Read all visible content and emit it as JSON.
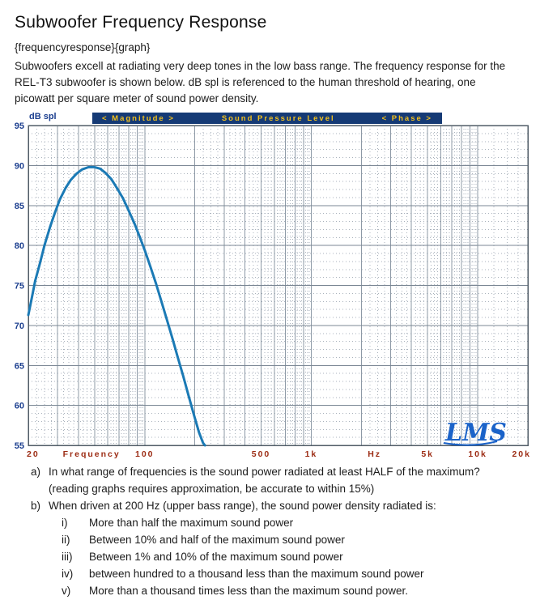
{
  "page": {
    "title": "Subwoofer Frequency Response",
    "tag_line": "{frequencyresponse}{graph}",
    "intro": "Subwoofers excell at radiating very deep tones in the low bass range. The frequency response for the REL-T3 subwoofer is shown below. dB spl is referenced to the human threshold of hearing, one picowatt per square meter of sound power density."
  },
  "graph": {
    "y_axis_title": "dB spl",
    "header": {
      "magnitude_toggle": "< Magnitude >",
      "title": "Sound Pressure Level",
      "phase_toggle": "< Phase >"
    },
    "logo": "LMS",
    "colors": {
      "header_bg": "#153a75",
      "header_text": "#f2c01e",
      "y_label": "#1c3f8f",
      "x_label": "#9c2c14",
      "grid_major": "#7b8794",
      "grid_solid": "#8d99a6",
      "grid_minor": "#a9b2bc",
      "border": "#4f5b66",
      "curve": "#1b7ab5",
      "logo": "#1b63c9"
    }
  },
  "chart_data": {
    "type": "line",
    "title": "Sound Pressure Level",
    "x_scale": "log",
    "xlabel": "Frequency (Hz)",
    "ylabel": "dB spl",
    "xlim_hz": [
      20,
      20000
    ],
    "ylim_db": [
      55,
      95
    ],
    "y_major_step_db": 5,
    "y_minor_step_db": 1,
    "y_tick_labels": [
      "95",
      "90",
      "85",
      "80",
      "75",
      "70",
      "65",
      "60",
      "55"
    ],
    "x_tick_labels": [
      {
        "text": "20",
        "hz": 20
      },
      {
        "text": "Frequency",
        "hz": 48
      },
      {
        "text": "100",
        "hz": 100
      },
      {
        "text": "500",
        "hz": 500
      },
      {
        "text": "1k",
        "hz": 1000
      },
      {
        "text": "Hz",
        "hz": 2400
      },
      {
        "text": "5k",
        "hz": 5000
      },
      {
        "text": "10k",
        "hz": 10000
      },
      {
        "text": "20k",
        "hz": 20000
      }
    ],
    "series": [
      {
        "name": "REL-T3 subwoofer sound pressure level",
        "color": "#1b7ab5",
        "points_hz_db": [
          [
            20,
            71.3
          ],
          [
            21,
            73.5
          ],
          [
            22,
            75.6
          ],
          [
            23.5,
            77.8
          ],
          [
            25,
            80.0
          ],
          [
            27,
            82.3
          ],
          [
            29,
            84.2
          ],
          [
            31,
            85.8
          ],
          [
            33.5,
            87.2
          ],
          [
            36,
            88.2
          ],
          [
            39,
            89.0
          ],
          [
            42,
            89.5
          ],
          [
            46,
            89.8
          ],
          [
            50,
            89.8
          ],
          [
            54,
            89.6
          ],
          [
            58,
            89.1
          ],
          [
            63,
            88.3
          ],
          [
            68,
            87.2
          ],
          [
            74,
            85.9
          ],
          [
            80,
            84.4
          ],
          [
            87,
            82.7
          ],
          [
            94,
            80.9
          ],
          [
            100,
            79.4
          ],
          [
            108,
            77.4
          ],
          [
            117,
            75.2
          ],
          [
            126,
            73.0
          ],
          [
            136,
            70.7
          ],
          [
            147,
            68.3
          ],
          [
            158,
            66.0
          ],
          [
            170,
            63.7
          ],
          [
            183,
            61.3
          ],
          [
            197,
            58.9
          ],
          [
            212,
            56.6
          ],
          [
            224,
            55.3
          ],
          [
            230,
            55.0
          ]
        ]
      }
    ]
  },
  "questions": {
    "a": {
      "label": "a)",
      "text": "In what range of frequencies is the sound power radiated at least HALF of the maximum? (reading graphs requires approximation, be accurate to within 15%)"
    },
    "b": {
      "label": "b)",
      "text": "When driven at 200 Hz (upper bass range), the sound power density radiated is:"
    },
    "b_options": [
      {
        "label": "i)",
        "text": "More than half the maximum sound power"
      },
      {
        "label": "ii)",
        "text": "Between 10% and half of the maximum sound power"
      },
      {
        "label": "iii)",
        "text": "Between 1% and 10% of the maximum sound power"
      },
      {
        "label": "iv)",
        "text": "between hundred to a thousand less than the maximum sound power"
      },
      {
        "label": "v)",
        "text": "More than a thousand times less than the maximum sound power."
      }
    ]
  }
}
